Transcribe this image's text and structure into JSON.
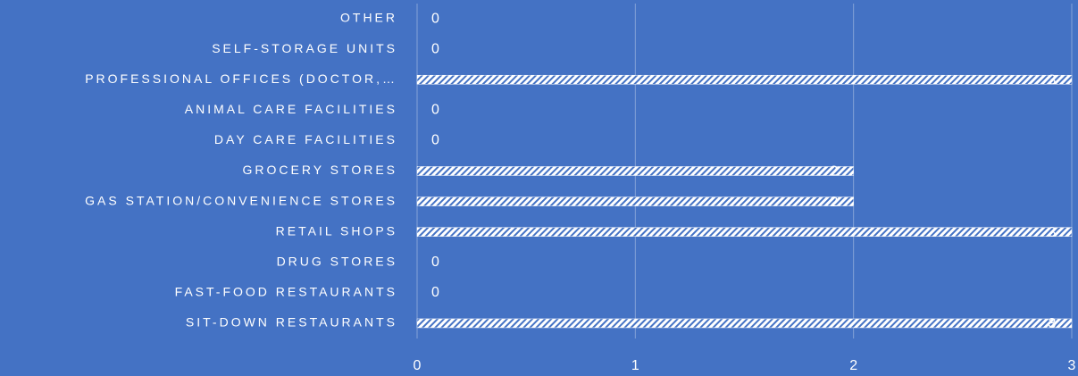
{
  "chart_data": {
    "type": "bar",
    "orientation": "horizontal",
    "categories": [
      "OTHER",
      "SELF-STORAGE UNITS",
      "PROFESSIONAL OFFICES (DOCTOR,…",
      "ANIMAL CARE FACILITIES",
      "DAY CARE FACILITIES",
      "GROCERY STORES",
      "GAS STATION/CONVENIENCE STORES",
      "RETAIL SHOPS",
      "DRUG STORES",
      "FAST-FOOD RESTAURANTS",
      "SIT-DOWN RESTAURANTS"
    ],
    "values": [
      0,
      0,
      3,
      0,
      0,
      2,
      2,
      3,
      0,
      0,
      3
    ],
    "color": "#ffffff",
    "xlim": [
      0,
      3
    ],
    "xticks": [
      0,
      1,
      2,
      3
    ],
    "grid": true
  }
}
